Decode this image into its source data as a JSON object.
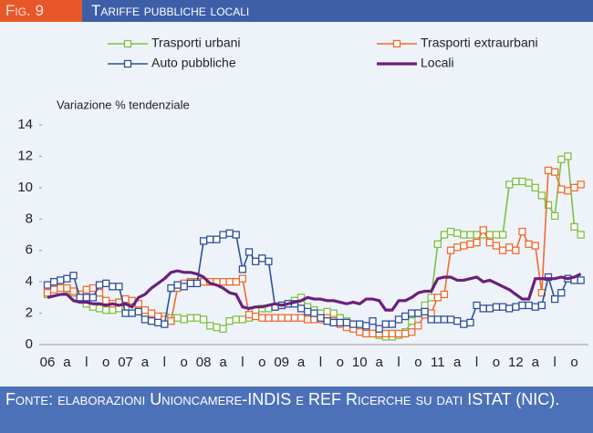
{
  "header": {
    "figure": "Fig. 9",
    "title": "Tariffe pubbliche locali"
  },
  "chart_data": {
    "type": "line",
    "y_label": "Variazione % tendenziale",
    "categories": [
      "06",
      null,
      null,
      "a",
      null,
      null,
      "l",
      null,
      null,
      "o",
      null,
      null,
      "07",
      null,
      null,
      "a",
      null,
      null,
      "l",
      null,
      null,
      "o",
      null,
      null,
      "08",
      null,
      null,
      "a",
      null,
      null,
      "l",
      null,
      null,
      "o",
      null,
      null,
      "09",
      null,
      null,
      "a",
      null,
      null,
      "l",
      null,
      null,
      "o",
      null,
      null,
      "10",
      null,
      null,
      "a",
      null,
      null,
      "l",
      null,
      null,
      "o",
      null,
      null,
      "11",
      null,
      null,
      "a",
      null,
      null,
      "l",
      null,
      null,
      "o",
      null,
      null,
      "12",
      null,
      null,
      "a",
      null,
      null,
      "l",
      null,
      null,
      "o",
      null
    ],
    "ylim": [
      0,
      14
    ],
    "yticks": [
      0,
      2,
      4,
      6,
      8,
      10,
      12,
      14
    ],
    "grid": false,
    "series": [
      {
        "name": "Trasporti urbani",
        "color": "#7cc142",
        "marker": "square",
        "values": [
          3.2,
          3.3,
          3.4,
          3.5,
          3.3,
          3.0,
          2.6,
          2.4,
          2.3,
          2.2,
          2.2,
          2.3,
          2.3,
          2.4,
          2.2,
          1.9,
          1.8,
          1.7,
          1.8,
          1.7,
          1.7,
          1.6,
          1.7,
          1.7,
          1.6,
          1.2,
          1.1,
          1.0,
          1.5,
          1.6,
          1.6,
          1.7,
          2.2,
          2.3,
          2.3,
          2.4,
          2.5,
          2.6,
          2.8,
          3.0,
          2.4,
          2.2,
          2.0,
          2.1,
          2.0,
          1.7,
          1.5,
          1.3,
          1.0,
          0.8,
          0.7,
          0.6,
          0.5,
          0.5,
          0.6,
          0.8,
          1.5,
          2.0,
          2.5,
          3.0,
          6.4,
          7.0,
          7.2,
          7.1,
          7.0,
          7.0,
          7.0,
          7.0,
          7.0,
          7.0,
          7.0,
          10.2,
          10.4,
          10.4,
          10.3,
          10.0,
          9.5,
          8.9,
          8.2,
          11.8,
          12.0,
          7.5,
          7.0
        ]
      },
      {
        "name": "Trasporti extraurbani",
        "color": "#f26a2e",
        "marker": "square",
        "values": [
          3.3,
          3.5,
          3.6,
          3.6,
          3.4,
          3.2,
          3.5,
          3.6,
          3.3,
          2.8,
          2.6,
          2.7,
          2.9,
          2.8,
          2.6,
          2.2,
          2.0,
          1.8,
          1.6,
          1.5,
          3.6,
          3.9,
          4.0,
          4.0,
          4.0,
          4.0,
          4.0,
          4.0,
          4.0,
          4.0,
          4.2,
          1.9,
          1.8,
          1.7,
          1.7,
          1.7,
          1.7,
          1.7,
          1.7,
          1.7,
          1.6,
          1.6,
          1.6,
          1.7,
          1.5,
          1.3,
          1.1,
          1.0,
          0.8,
          0.7,
          0.7,
          0.7,
          0.7,
          0.7,
          0.7,
          0.7,
          0.8,
          1.2,
          1.9,
          2.0,
          3.0,
          3.2,
          6.0,
          6.2,
          6.3,
          6.4,
          6.5,
          7.3,
          6.5,
          6.3,
          6.0,
          6.2,
          6.0,
          7.2,
          6.4,
          6.3,
          3.3,
          11.1,
          11.0,
          9.9,
          9.8,
          10.0,
          10.2
        ]
      },
      {
        "name": "Auto pubbliche",
        "color": "#2f4f9e",
        "marker": "square",
        "values": [
          3.8,
          4.0,
          4.1,
          4.2,
          4.4,
          3.0,
          3.0,
          3.0,
          3.8,
          3.9,
          3.7,
          3.7,
          2.0,
          2.0,
          2.1,
          1.6,
          1.5,
          1.4,
          1.3,
          3.6,
          3.8,
          3.7,
          3.9,
          3.9,
          6.6,
          6.7,
          6.7,
          7.0,
          7.1,
          7.0,
          4.8,
          5.9,
          5.3,
          5.5,
          5.3,
          2.4,
          2.5,
          2.6,
          2.6,
          2.3,
          2.1,
          2.0,
          1.7,
          1.5,
          1.4,
          1.4,
          1.4,
          1.3,
          1.3,
          1.2,
          1.5,
          1.0,
          1.3,
          1.3,
          1.6,
          1.8,
          2.0,
          2.0,
          2.1,
          1.6,
          1.6,
          1.6,
          1.6,
          1.5,
          1.3,
          1.4,
          2.5,
          2.3,
          2.3,
          2.4,
          2.4,
          2.3,
          2.4,
          2.5,
          2.5,
          2.4,
          2.5,
          4.3,
          2.9,
          3.3,
          4.2,
          4.1,
          4.1
        ]
      },
      {
        "name": "Locali",
        "color": "#6b1f7c",
        "marker": "none",
        "values": [
          3.0,
          3.1,
          3.2,
          3.2,
          2.8,
          2.7,
          2.7,
          2.6,
          2.6,
          2.5,
          2.6,
          2.5,
          2.6,
          2.4,
          3.0,
          3.2,
          3.6,
          3.9,
          4.2,
          4.6,
          4.7,
          4.6,
          4.6,
          4.5,
          4.3,
          3.9,
          3.8,
          3.6,
          3.3,
          3.2,
          2.4,
          2.3,
          2.4,
          2.4,
          2.5,
          2.6,
          2.5,
          2.6,
          2.7,
          2.8,
          3.0,
          2.9,
          2.9,
          2.8,
          2.8,
          2.7,
          2.6,
          2.7,
          2.6,
          2.9,
          2.9,
          2.8,
          2.2,
          2.2,
          2.8,
          2.8,
          3.0,
          3.3,
          3.4,
          3.4,
          4.2,
          4.3,
          4.3,
          4.1,
          4.1,
          4.2,
          4.3,
          4.0,
          4.1,
          3.9,
          3.7,
          3.5,
          3.2,
          2.9,
          2.9,
          4.2,
          4.2,
          4.2,
          4.2,
          4.3,
          4.2,
          4.3,
          4.5
        ]
      }
    ]
  },
  "footer": {
    "source": "Fonte: elaborazioni Unioncamere-INDIS e REF Ricerche su dati ISTAT (NIC)."
  }
}
